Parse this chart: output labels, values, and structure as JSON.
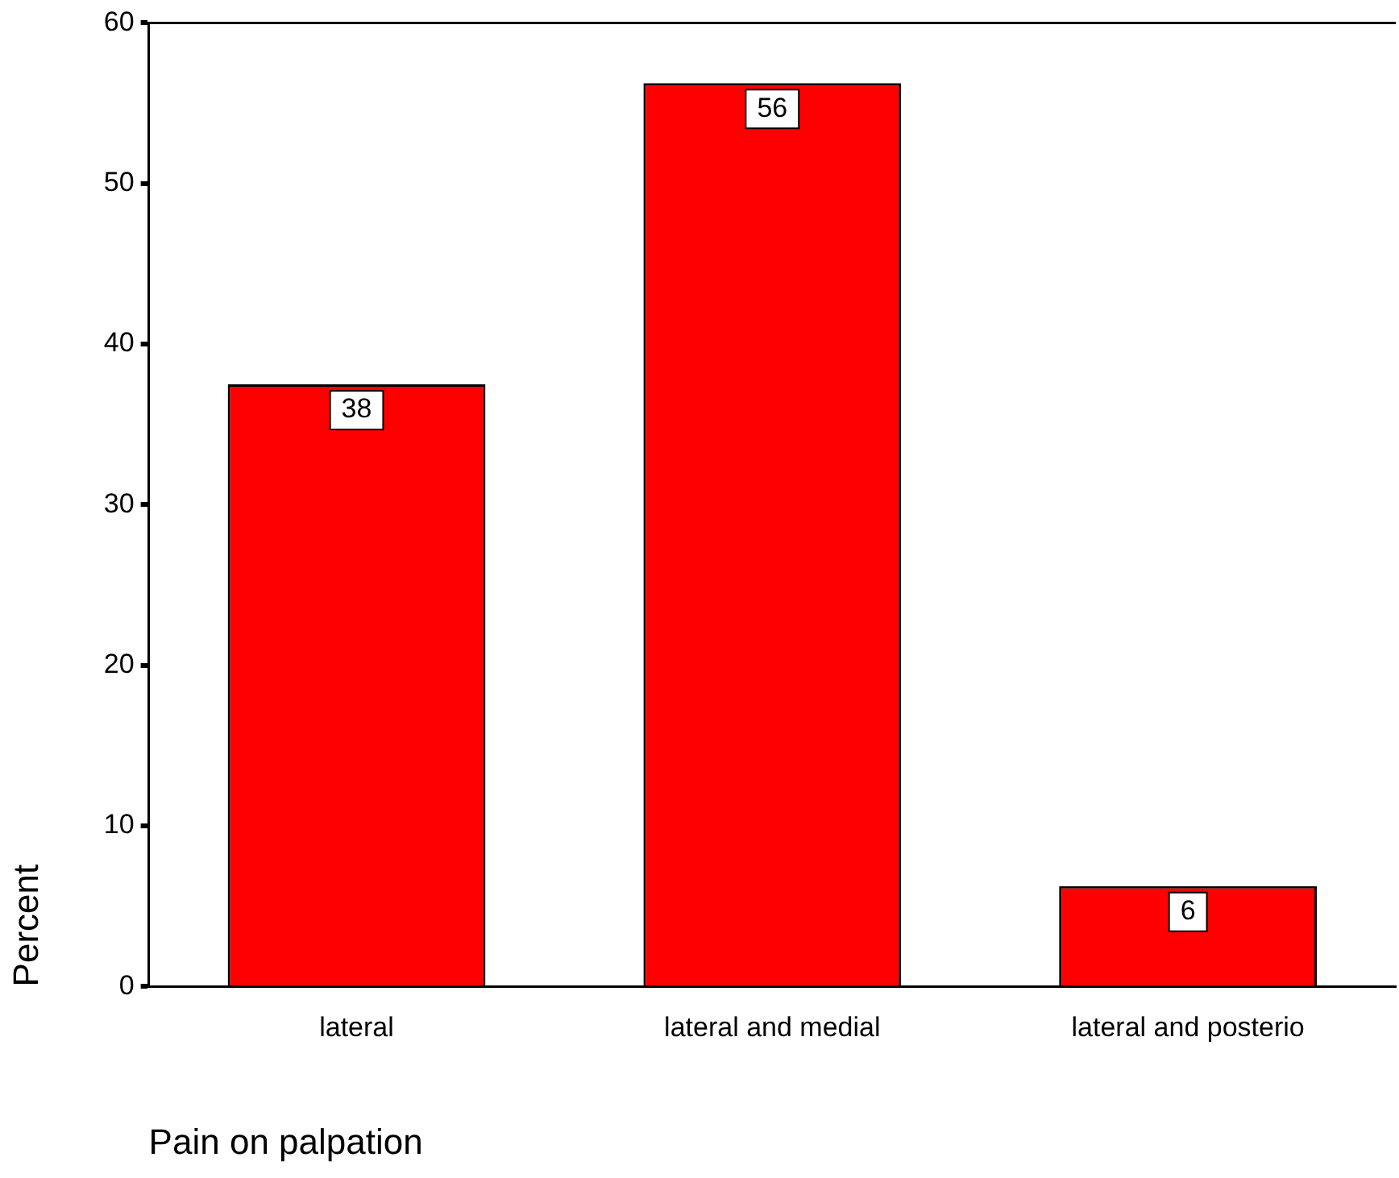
{
  "chart_data": {
    "type": "bar",
    "xlabel": "Pain on palpation",
    "ylabel": "Percent",
    "categories": [
      "lateral",
      "lateral and medial",
      "lateral and posterio"
    ],
    "values": [
      37.5,
      56.25,
      6.25
    ],
    "value_labels": [
      "38",
      "56",
      "6"
    ],
    "color": "#ff0000",
    "ylim": [
      0,
      60
    ],
    "yticks": [
      0,
      10,
      20,
      30,
      40,
      50,
      60
    ],
    "grid": false,
    "legend": false
  }
}
